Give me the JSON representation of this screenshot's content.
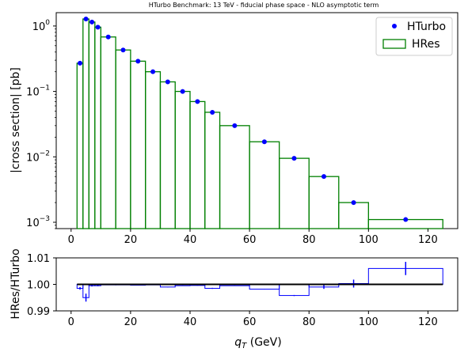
{
  "colors": {
    "hturbo": "#0000ff",
    "hres": "#008000",
    "ratio": "#0000ff",
    "unity": "#000000"
  },
  "chart_data": [
    {
      "type": "step",
      "title": "HTurbo Benchmark: 13 TeV - fiducial phase space - NLO asymptotic term",
      "ylabel": "|cross section| [pb]",
      "yscale": "log",
      "ylim": [
        0.0008,
        1.6
      ],
      "xlim": [
        -5,
        130
      ],
      "x_ticks": [
        "0",
        "20",
        "40",
        "60",
        "80",
        "100",
        "120"
      ],
      "y_ticks": [
        {
          "base": "10",
          "exp": "0"
        },
        {
          "base": "10",
          "exp": "−1"
        },
        {
          "base": "10",
          "exp": "−2"
        },
        {
          "base": "10",
          "exp": "−3"
        }
      ],
      "legend": {
        "position": "top-right",
        "entries": [
          "HTurbo",
          "HRes"
        ]
      },
      "bins": [
        {
          "lo": 2,
          "hi": 4,
          "hres": 0.27,
          "hturbo": 0.27
        },
        {
          "lo": 4,
          "hi": 6,
          "hres": 1.28,
          "hturbo": 1.28
        },
        {
          "lo": 6,
          "hi": 8,
          "hres": 1.15,
          "hturbo": 1.15
        },
        {
          "lo": 8,
          "hi": 10,
          "hres": 0.96,
          "hturbo": 0.96
        },
        {
          "lo": 10,
          "hi": 15,
          "hres": 0.68,
          "hturbo": 0.68
        },
        {
          "lo": 15,
          "hi": 20,
          "hres": 0.43,
          "hturbo": 0.43
        },
        {
          "lo": 20,
          "hi": 25,
          "hres": 0.29,
          "hturbo": 0.29
        },
        {
          "lo": 25,
          "hi": 30,
          "hres": 0.2,
          "hturbo": 0.2
        },
        {
          "lo": 30,
          "hi": 35,
          "hres": 0.14,
          "hturbo": 0.14
        },
        {
          "lo": 35,
          "hi": 40,
          "hres": 0.1,
          "hturbo": 0.1
        },
        {
          "lo": 40,
          "hi": 45,
          "hres": 0.07,
          "hturbo": 0.07
        },
        {
          "lo": 45,
          "hi": 50,
          "hres": 0.048,
          "hturbo": 0.048
        },
        {
          "lo": 50,
          "hi": 60,
          "hres": 0.03,
          "hturbo": 0.03
        },
        {
          "lo": 60,
          "hi": 70,
          "hres": 0.017,
          "hturbo": 0.017
        },
        {
          "lo": 70,
          "hi": 80,
          "hres": 0.0095,
          "hturbo": 0.0095
        },
        {
          "lo": 80,
          "hi": 90,
          "hres": 0.005,
          "hturbo": 0.005
        },
        {
          "lo": 90,
          "hi": 100,
          "hres": 0.002,
          "hturbo": 0.002
        },
        {
          "lo": 100,
          "hi": 125,
          "hres": 0.0011,
          "hturbo": 0.0011
        }
      ]
    },
    {
      "type": "step",
      "ylabel": "HRes/HTurbo",
      "xlabel_base": "q",
      "xlabel_sub": "T",
      "xlabel_unit": " (GeV)",
      "ylim": [
        0.99,
        1.01
      ],
      "xlim": [
        -5,
        130
      ],
      "x_ticks": [
        "0",
        "20",
        "40",
        "60",
        "80",
        "100",
        "120"
      ],
      "y_ticks": [
        "0.99",
        "1.00",
        "1.01"
      ],
      "unity_line": 1.0,
      "ratio_bins": [
        {
          "lo": 2,
          "hi": 4,
          "ratio": 0.9985,
          "err": 0.0005
        },
        {
          "lo": 4,
          "hi": 6,
          "ratio": 0.995,
          "err": 0.0015
        },
        {
          "lo": 6,
          "hi": 8,
          "ratio": 0.9995,
          "err": 0.0003
        },
        {
          "lo": 8,
          "hi": 10,
          "ratio": 0.9995,
          "err": 0.0002
        },
        {
          "lo": 10,
          "hi": 15,
          "ratio": 0.9998,
          "err": 0.0001
        },
        {
          "lo": 15,
          "hi": 20,
          "ratio": 0.9998,
          "err": 0.0001
        },
        {
          "lo": 20,
          "hi": 25,
          "ratio": 0.9997,
          "err": 0.0001
        },
        {
          "lo": 25,
          "hi": 30,
          "ratio": 0.9998,
          "err": 0.0001
        },
        {
          "lo": 30,
          "hi": 35,
          "ratio": 0.999,
          "err": 0.0001
        },
        {
          "lo": 35,
          "hi": 40,
          "ratio": 0.9995,
          "err": 0.0001
        },
        {
          "lo": 40,
          "hi": 45,
          "ratio": 0.9996,
          "err": 0.0001
        },
        {
          "lo": 45,
          "hi": 50,
          "ratio": 0.9985,
          "err": 0.0002
        },
        {
          "lo": 50,
          "hi": 60,
          "ratio": 0.9995,
          "err": 0.0001
        },
        {
          "lo": 60,
          "hi": 70,
          "ratio": 0.9982,
          "err": 0.0001
        },
        {
          "lo": 70,
          "hi": 80,
          "ratio": 0.9958,
          "err": 0.0002
        },
        {
          "lo": 80,
          "hi": 90,
          "ratio": 0.999,
          "err": 0.0007
        },
        {
          "lo": 90,
          "hi": 100,
          "ratio": 1.0003,
          "err": 0.0015
        },
        {
          "lo": 100,
          "hi": 125,
          "ratio": 1.006,
          "err": 0.0025
        }
      ]
    }
  ]
}
